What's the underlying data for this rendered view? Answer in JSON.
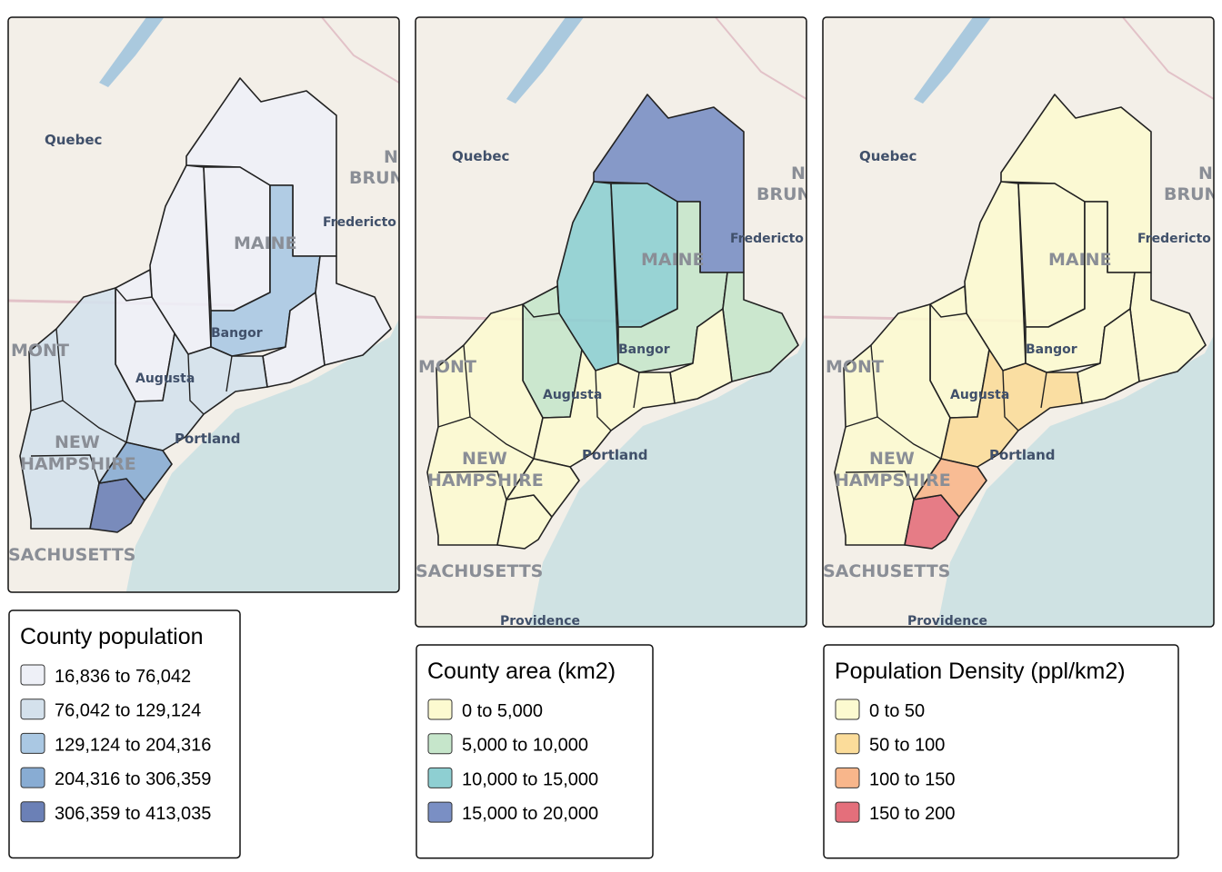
{
  "basemap_labels": {
    "quebec": "Quebec",
    "n": "N",
    "brun": "BRUN",
    "fredericton": "Fredericto",
    "maine": "MAINE",
    "bangor": "Bangor",
    "augusta": "Augusta",
    "portland": "Portland",
    "mont": "MONT",
    "new": "NEW",
    "hampshire": "HAMPSHIRE",
    "massachusetts": "SACHUSETTS",
    "providence": "Providence"
  },
  "panels": [
    {
      "legend": {
        "title": "County population",
        "classes": [
          {
            "label": "16,836 to 76,042",
            "color": "#eef0f7"
          },
          {
            "label": "76,042 to 129,124",
            "color": "#d4e1ec"
          },
          {
            "label": "129,124 to 204,316",
            "color": "#aac8e3"
          },
          {
            "label": "204,316 to 306,359",
            "color": "#88acd3"
          },
          {
            "label": "306,359 to 413,035",
            "color": "#6b80b6"
          }
        ]
      }
    },
    {
      "legend": {
        "title": "County area (km2)",
        "classes": [
          {
            "label": "0 to 5,000",
            "color": "#fcfad0"
          },
          {
            "label": "5,000 to 10,000",
            "color": "#c6e6cb"
          },
          {
            "label": "10,000 to 15,000",
            "color": "#8ecfd2"
          },
          {
            "label": "15,000 to 20,000",
            "color": "#7a8fc4"
          }
        ]
      }
    },
    {
      "legend": {
        "title": "Population Density (ppl/km2)",
        "classes": [
          {
            "label": "0 to 50",
            "color": "#fcfad0"
          },
          {
            "label": "50 to 100",
            "color": "#fbdc9a"
          },
          {
            "label": "100 to 150",
            "color": "#f8b68b"
          },
          {
            "label": "150 to 200",
            "color": "#e46f7b"
          }
        ]
      }
    }
  ]
}
